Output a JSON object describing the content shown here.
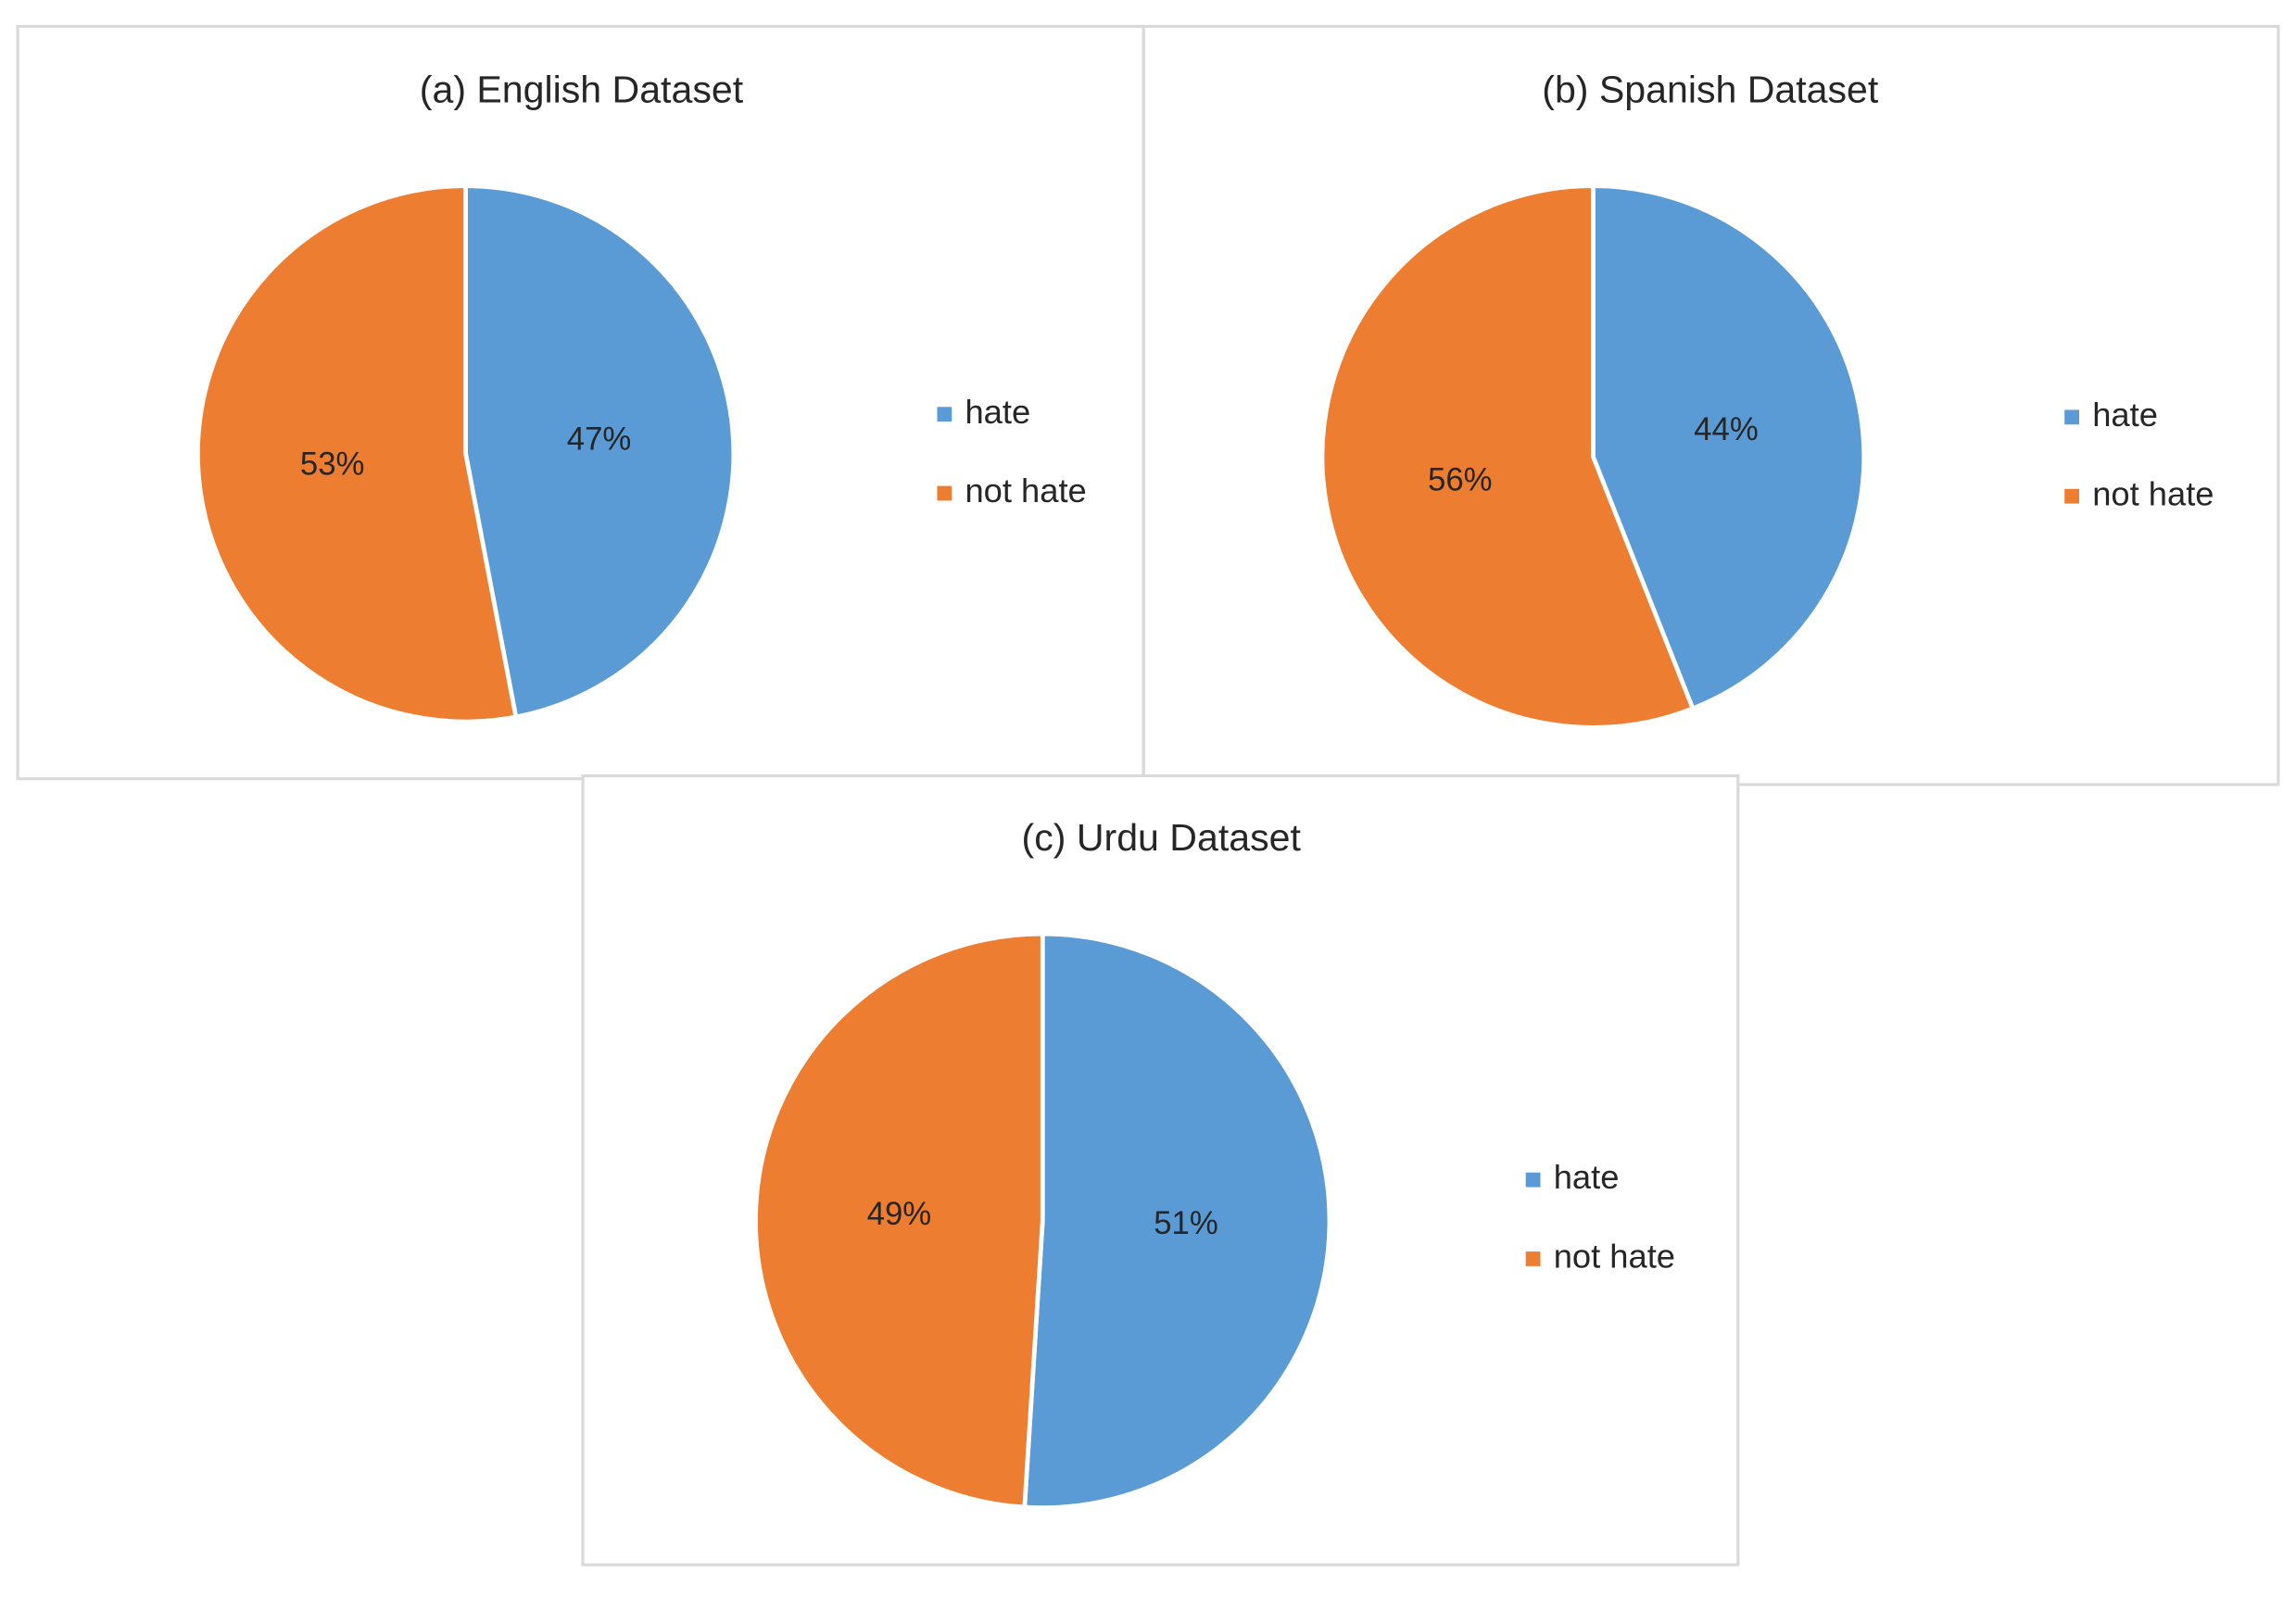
{
  "chart_data": [
    {
      "type": "pie",
      "title": "(a) English Dataset",
      "categories": [
        "hate",
        "not hate"
      ],
      "values": [
        47,
        53
      ],
      "value_labels": [
        "47%",
        "53%"
      ],
      "colors": [
        "#5b9bd5",
        "#ed7d31"
      ],
      "legend": "right"
    },
    {
      "type": "pie",
      "title": "(b) Spanish Dataset",
      "categories": [
        "hate",
        "not hate"
      ],
      "values": [
        44,
        56
      ],
      "value_labels": [
        "44%",
        "56%"
      ],
      "colors": [
        "#5b9bd5",
        "#ed7d31"
      ],
      "legend": "right"
    },
    {
      "type": "pie",
      "title": "(c) Urdu Dataset",
      "categories": [
        "hate",
        "not hate"
      ],
      "values": [
        51,
        49
      ],
      "value_labels": [
        "51%",
        "49%"
      ],
      "colors": [
        "#5b9bd5",
        "#ed7d31"
      ],
      "legend": "right"
    }
  ]
}
